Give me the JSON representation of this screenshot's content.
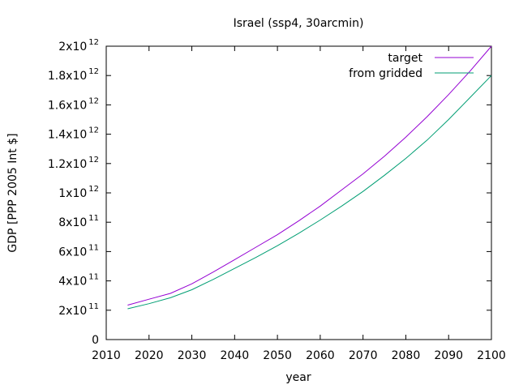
{
  "chart_data": {
    "type": "line",
    "title": "Israel (ssp4, 30arcmin)",
    "xlabel": "year",
    "ylabel": "GDP [PPP 2005 Int $]",
    "xlim": [
      2010,
      2100
    ],
    "ylim": [
      0,
      2000000000000
    ],
    "x_ticks": [
      {
        "value": 2010,
        "label": "2010"
      },
      {
        "value": 2020,
        "label": "2020"
      },
      {
        "value": 2030,
        "label": "2030"
      },
      {
        "value": 2040,
        "label": "2040"
      },
      {
        "value": 2050,
        "label": "2050"
      },
      {
        "value": 2060,
        "label": "2060"
      },
      {
        "value": 2070,
        "label": "2070"
      },
      {
        "value": 2080,
        "label": "2080"
      },
      {
        "value": 2090,
        "label": "2090"
      },
      {
        "value": 2100,
        "label": "2100"
      }
    ],
    "y_ticks": [
      {
        "value": 0,
        "mantissa": "0",
        "exponent": ""
      },
      {
        "value": 200000000000,
        "mantissa": "2x10",
        "exponent": "11"
      },
      {
        "value": 400000000000,
        "mantissa": "4x10",
        "exponent": "11"
      },
      {
        "value": 600000000000,
        "mantissa": "6x10",
        "exponent": "11"
      },
      {
        "value": 800000000000,
        "mantissa": "8x10",
        "exponent": "11"
      },
      {
        "value": 1000000000000,
        "mantissa": "1x10",
        "exponent": "12"
      },
      {
        "value": 1200000000000,
        "mantissa": "1.2x10",
        "exponent": "12"
      },
      {
        "value": 1400000000000,
        "mantissa": "1.4x10",
        "exponent": "12"
      },
      {
        "value": 1600000000000,
        "mantissa": "1.6x10",
        "exponent": "12"
      },
      {
        "value": 1800000000000,
        "mantissa": "1.8x10",
        "exponent": "12"
      },
      {
        "value": 2000000000000,
        "mantissa": "2x10",
        "exponent": "12"
      }
    ],
    "grid": false,
    "legend_position": "top-right",
    "x": [
      2015,
      2020,
      2025,
      2030,
      2035,
      2040,
      2045,
      2050,
      2055,
      2060,
      2065,
      2070,
      2075,
      2080,
      2085,
      2090,
      2095,
      2100
    ],
    "series": [
      {
        "name": "target",
        "color": "#9400d3",
        "values": [
          235000000000.0,
          275000000000.0,
          315000000000.0,
          380000000000.0,
          460000000000.0,
          545000000000.0,
          630000000000.0,
          715000000000.0,
          810000000000.0,
          910000000000.0,
          1020000000000.0,
          1130000000000.0,
          1250000000000.0,
          1380000000000.0,
          1520000000000.0,
          1670000000000.0,
          1830000000000.0,
          2000000000000.0
        ]
      },
      {
        "name": "from gridded",
        "color": "#009e73",
        "values": [
          210000000000.0,
          245000000000.0,
          285000000000.0,
          340000000000.0,
          410000000000.0,
          485000000000.0,
          560000000000.0,
          640000000000.0,
          725000000000.0,
          815000000000.0,
          910000000000.0,
          1010000000000.0,
          1120000000000.0,
          1235000000000.0,
          1360000000000.0,
          1500000000000.0,
          1650000000000.0,
          1800000000000.0
        ]
      }
    ]
  }
}
